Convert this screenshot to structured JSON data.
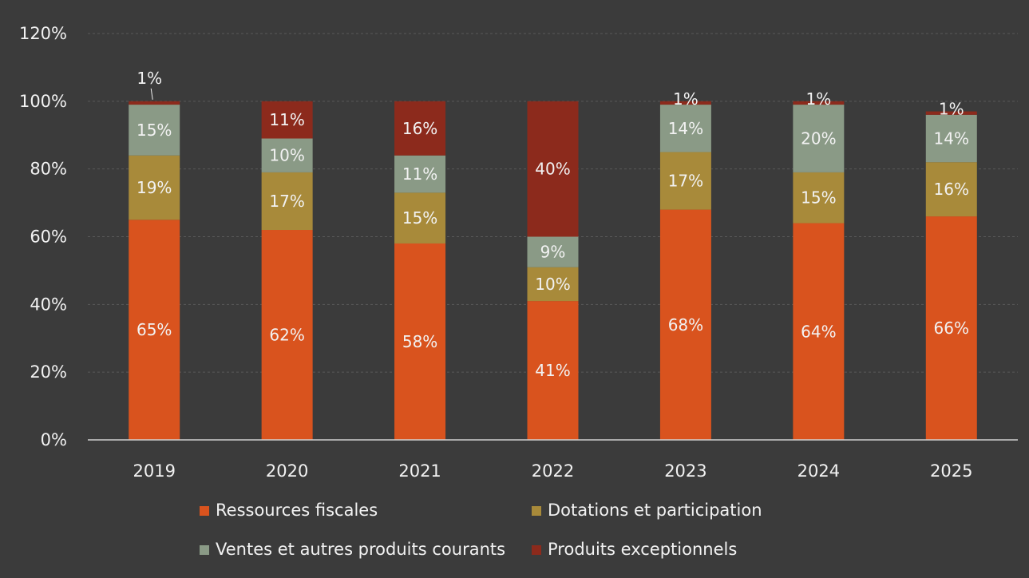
{
  "chart_data": {
    "type": "bar",
    "stacked": true,
    "categories": [
      "2019",
      "2020",
      "2021",
      "2022",
      "2023",
      "2024",
      "2025"
    ],
    "series": [
      {
        "name": "Ressources fiscales",
        "color": "#d9531e",
        "values": [
          65,
          62,
          58,
          41,
          68,
          64,
          66
        ],
        "labels": [
          "65%",
          "62%",
          "58%",
          "41%",
          "68%",
          "64%",
          "66%"
        ]
      },
      {
        "name": "Dotations et participation",
        "color": "#a88a3a",
        "values": [
          19,
          17,
          15,
          10,
          17,
          15,
          16
        ],
        "labels": [
          "19%",
          "17%",
          "15%",
          "10%",
          "17%",
          "15%",
          "16%"
        ]
      },
      {
        "name": "Ventes et autres produits courants",
        "color": "#8a9a86",
        "values": [
          15,
          10,
          11,
          9,
          14,
          20,
          14
        ],
        "labels": [
          "15%",
          "10%",
          "11%",
          "9%",
          "14%",
          "20%",
          "14%"
        ]
      },
      {
        "name": "Produits exceptionnels",
        "color": "#8c2a1c",
        "values": [
          1,
          11,
          16,
          40,
          1,
          1,
          1
        ],
        "labels": [
          "1%",
          "11%",
          "16%",
          "40%",
          "1%",
          "1%",
          "1%"
        ]
      }
    ],
    "y_ticks": [
      "0%",
      "20%",
      "40%",
      "60%",
      "80%",
      "100%",
      "120%"
    ],
    "ylim": [
      0,
      120
    ],
    "grid": true,
    "legend_position": "bottom"
  },
  "colors": {
    "background": "#3b3b3b",
    "text": "#f2f2f2",
    "gridline": "#5a5a5a",
    "axis": "#cfcfcf"
  }
}
